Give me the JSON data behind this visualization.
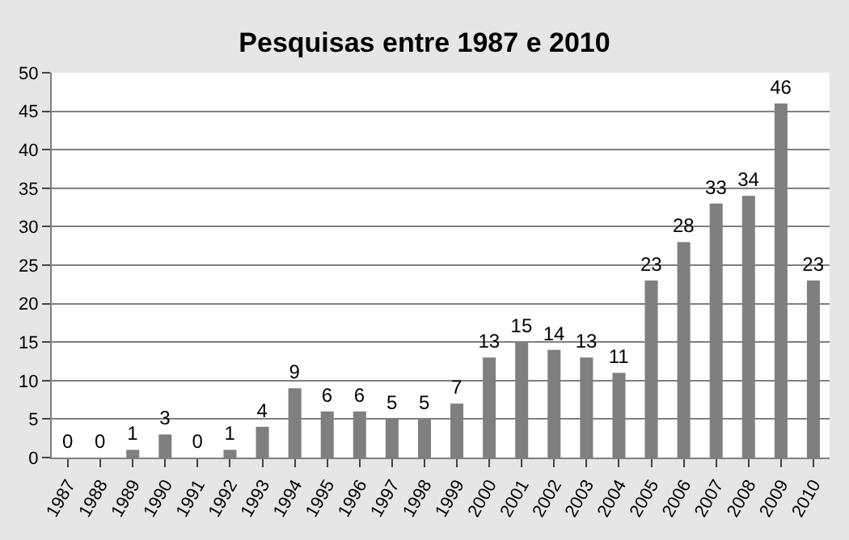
{
  "chart_data": {
    "type": "bar",
    "title": "Pesquisas entre 1987 e 2010",
    "categories": [
      "1987",
      "1988",
      "1989",
      "1990",
      "1991",
      "1992",
      "1993",
      "1994",
      "1995",
      "1996",
      "1997",
      "1998",
      "1999",
      "2000",
      "2001",
      "2002",
      "2003",
      "2004",
      "2005",
      "2006",
      "2007",
      "2008",
      "2009",
      "2010"
    ],
    "values": [
      0,
      0,
      1,
      3,
      0,
      1,
      4,
      9,
      6,
      6,
      5,
      5,
      7,
      13,
      15,
      14,
      13,
      11,
      23,
      28,
      33,
      34,
      46,
      23
    ],
    "color": "#7f7f7f",
    "ylim": [
      0,
      50
    ],
    "yticks": [
      0,
      5,
      10,
      15,
      20,
      25,
      30,
      35,
      40,
      45,
      50
    ],
    "grid": "y",
    "data_labels": true
  }
}
